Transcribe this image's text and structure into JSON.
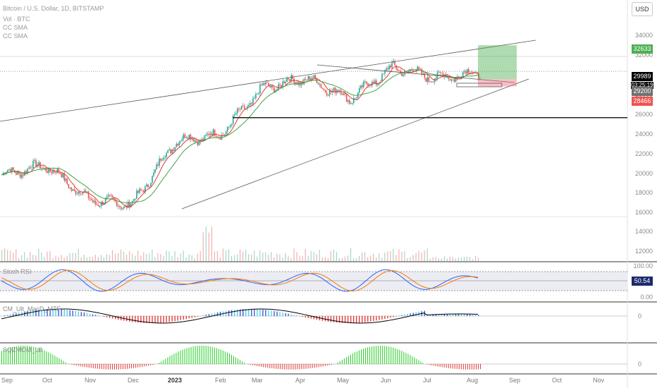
{
  "header": {
    "symbol_line": "Bitcoin / U.S. Dollar, 1D, BITSTAMP",
    "volume_label": "Vol · BTC",
    "sma1_label": "CC SMA",
    "sma2_label": "CC SMA"
  },
  "currency_button": "USD",
  "price_axis": {
    "ticks": [
      "34000",
      "32000",
      "30000",
      "28000",
      "26000",
      "24000",
      "22000",
      "20000",
      "18000",
      "16000",
      "14000",
      "12000"
    ],
    "badges": {
      "target": "32633",
      "current": "29989",
      "countdown": "03:25:19",
      "entry": "29200",
      "stop": "28466"
    }
  },
  "panes": {
    "stoch_rsi": {
      "label": "Stoch RSI",
      "ticks": [
        "100.00",
        "0.00"
      ],
      "value": "50.54"
    },
    "macd": {
      "label": "CM_Ult_MacD_MTF",
      "zero": "0"
    },
    "sqzmom": {
      "label": "SQZMOM_LB",
      "zero": "0"
    }
  },
  "time_axis": [
    "Sep",
    "Oct",
    "Nov",
    "Dec",
    "2023",
    "Feb",
    "Mar",
    "Apr",
    "May",
    "Jun",
    "Jul",
    "Aug",
    "Sep",
    "Oct",
    "Nov"
  ],
  "colors": {
    "up": "#26a69a",
    "down": "#ef5350",
    "sma_red": "#e53935",
    "sma_green": "#43a047",
    "target_green": "#4caf50",
    "stop_red": "#f06070",
    "stoch_k": "#2962ff",
    "stoch_d": "#f57c00"
  },
  "chart_data": {
    "type": "candlestick",
    "symbol": "Bitcoin / U.S. Dollar",
    "interval": "1D",
    "exchange": "BITSTAMP",
    "x": [
      "Sep",
      "Oct",
      "Nov",
      "Dec",
      "2023",
      "Feb",
      "Mar",
      "Apr",
      "May",
      "Jun",
      "Jul",
      "Aug"
    ],
    "close_monthly": [
      19500,
      20500,
      17000,
      16500,
      23000,
      23500,
      28300,
      29300,
      27200,
      30400,
      29300,
      29900
    ],
    "last_price": 29989,
    "position": {
      "target": 32633,
      "entry": 29200,
      "stop": 28466
    },
    "horizontal_level": 25300,
    "ylim": [
      11000,
      35500
    ]
  }
}
